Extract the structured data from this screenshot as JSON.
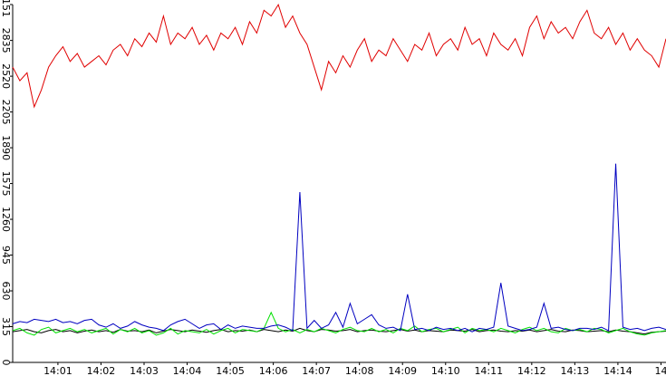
{
  "chart_data": {
    "type": "line",
    "xlim": [
      0,
      91
    ],
    "xticks": [
      {
        "value": 6.3,
        "label": "14:01"
      },
      {
        "value": 12.3,
        "label": "14:02"
      },
      {
        "value": 18.3,
        "label": "14:03"
      },
      {
        "value": 24.3,
        "label": "14:04"
      },
      {
        "value": 30.3,
        "label": "14:05"
      },
      {
        "value": 36.3,
        "label": "14:06"
      },
      {
        "value": 42.3,
        "label": "14:07"
      },
      {
        "value": 48.3,
        "label": "14:08"
      },
      {
        "value": 54.3,
        "label": "14:09"
      },
      {
        "value": 60.3,
        "label": "14:10"
      },
      {
        "value": 66.3,
        "label": "14:11"
      },
      {
        "value": 72.3,
        "label": "14:12"
      },
      {
        "value": 78.3,
        "label": "14:13"
      },
      {
        "value": 84.3,
        "label": "14:14"
      },
      {
        "value": 90.3,
        "label": "14"
      }
    ],
    "ylim": [
      0,
      3151
    ],
    "yticks": [
      0,
      315,
      630,
      945,
      1260,
      1575,
      1890,
      2205,
      2520,
      2835,
      3151
    ],
    "series": [
      {
        "color": "#e00000",
        "values": [
          2600,
          2480,
          2550,
          2250,
          2400,
          2600,
          2700,
          2780,
          2650,
          2720,
          2600,
          2650,
          2700,
          2620,
          2750,
          2800,
          2700,
          2850,
          2780,
          2900,
          2820,
          3050,
          2800,
          2900,
          2850,
          2950,
          2800,
          2880,
          2750,
          2900,
          2850,
          2950,
          2800,
          3000,
          2900,
          3100,
          3050,
          3150,
          2950,
          3050,
          2900,
          2800,
          2600,
          2400,
          2650,
          2550,
          2700,
          2600,
          2750,
          2850,
          2650,
          2750,
          2700,
          2850,
          2750,
          2650,
          2800,
          2750,
          2900,
          2700,
          2800,
          2850,
          2750,
          2950,
          2800,
          2850,
          2700,
          2900,
          2800,
          2750,
          2850,
          2700,
          2950,
          3050,
          2850,
          3000,
          2900,
          2950,
          2850,
          3000,
          3100,
          2900,
          2850,
          2950,
          2800,
          2900,
          2750,
          2850,
          2750,
          2700,
          2600,
          2850
        ]
      },
      {
        "color": "#0000c0",
        "values": [
          340,
          360,
          350,
          380,
          370,
          360,
          380,
          350,
          360,
          340,
          370,
          380,
          330,
          310,
          340,
          300,
          320,
          360,
          330,
          310,
          300,
          280,
          330,
          360,
          380,
          340,
          300,
          330,
          340,
          290,
          330,
          300,
          320,
          310,
          300,
          300,
          320,
          330,
          310,
          280,
          1500,
          300,
          370,
          300,
          330,
          440,
          310,
          520,
          340,
          380,
          420,
          330,
          300,
          310,
          280,
          600,
          290,
          300,
          280,
          310,
          290,
          300,
          280,
          300,
          270,
          300,
          290,
          310,
          700,
          320,
          300,
          280,
          290,
          310,
          520,
          300,
          310,
          290,
          280,
          300,
          300,
          290,
          310,
          280,
          1750,
          310,
          290,
          300,
          280,
          300,
          310,
          290
        ]
      },
      {
        "color": "#00e000",
        "values": [
          280,
          300,
          260,
          240,
          290,
          310,
          260,
          280,
          300,
          270,
          290,
          260,
          280,
          300,
          250,
          290,
          270,
          300,
          260,
          280,
          240,
          260,
          300,
          250,
          280,
          270,
          260,
          290,
          250,
          280,
          300,
          260,
          290,
          280,
          270,
          300,
          440,
          300,
          270,
          290,
          260,
          290,
          270,
          300,
          280,
          260,
          290,
          310,
          280,
          270,
          300,
          270,
          290,
          260,
          300,
          280,
          320,
          270,
          290,
          300,
          270,
          290,
          310,
          260,
          300,
          280,
          290,
          270,
          300,
          280,
          260,
          290,
          310,
          280,
          300,
          270,
          260,
          300,
          280,
          290,
          270,
          300,
          290,
          260,
          280,
          300,
          270,
          250,
          240,
          260,
          270,
          280
        ]
      },
      {
        "color": "#000000",
        "values": [
          270,
          280,
          290,
          270,
          260,
          280,
          290,
          270,
          280,
          260,
          275,
          285,
          270,
          280,
          265,
          290,
          275,
          280,
          270,
          285,
          260,
          275,
          290,
          280,
          270,
          285,
          275,
          265,
          280,
          290,
          270,
          280,
          275,
          285,
          270,
          290,
          280,
          270,
          285,
          275,
          300,
          280,
          270,
          290,
          285,
          275,
          280,
          290,
          270,
          280,
          285,
          275,
          270,
          280,
          290,
          275,
          285,
          270,
          280,
          275,
          270,
          285,
          280,
          275,
          290,
          270,
          280,
          285,
          275,
          270,
          280,
          275,
          285,
          270,
          280,
          290,
          275,
          270,
          285,
          280,
          270,
          275,
          280,
          270,
          285,
          275,
          270,
          260,
          250,
          265,
          270,
          275
        ]
      }
    ]
  }
}
